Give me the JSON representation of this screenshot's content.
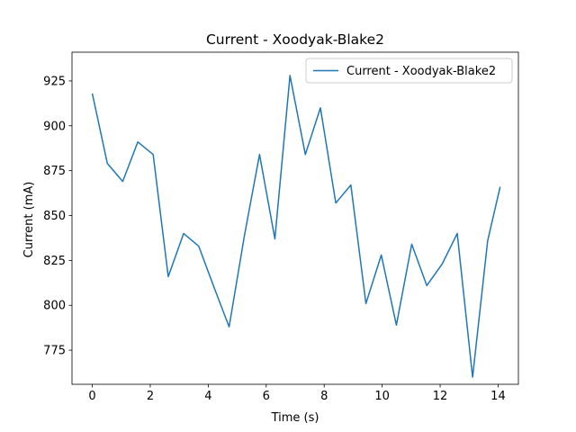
{
  "chart_data": {
    "type": "line",
    "title": "Current - Xoodyak-Blake2",
    "xlabel": "Time (s)",
    "ylabel": "Current (mA)",
    "xlim": [
      -0.7,
      14.7
    ],
    "ylim": [
      756,
      941
    ],
    "x_ticks": [
      0,
      2,
      4,
      6,
      8,
      10,
      12,
      14
    ],
    "y_ticks": [
      775,
      800,
      825,
      850,
      875,
      900,
      925
    ],
    "grid": false,
    "legend_position": "top-right",
    "series": [
      {
        "name": "Current - Xoodyak-Blake2",
        "color": "#1f77b4",
        "x": [
          0.0,
          0.52,
          1.05,
          1.57,
          2.1,
          2.62,
          3.15,
          3.67,
          4.2,
          4.72,
          5.25,
          5.77,
          6.3,
          6.82,
          7.35,
          7.87,
          8.4,
          8.92,
          9.44,
          9.97,
          10.49,
          11.02,
          11.54,
          12.07,
          12.59,
          13.12,
          13.64,
          14.07
        ],
        "values": [
          918,
          879,
          869,
          891,
          884,
          816,
          840,
          833,
          810,
          788,
          839,
          884,
          837,
          928,
          884,
          910,
          857,
          867,
          801,
          828,
          789,
          834,
          811,
          823,
          840,
          760,
          836,
          866
        ]
      }
    ]
  }
}
